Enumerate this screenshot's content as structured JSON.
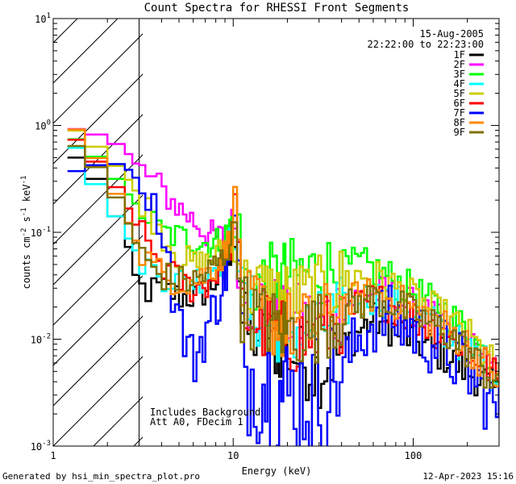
{
  "chart_data": {
    "type": "line",
    "title": "Count Spectra for RHESSI Front Segments",
    "xlabel": "Energy (keV)",
    "ylabel_parts": {
      "a": "counts cm",
      "b": "-2",
      "c": " s",
      "d": "-1",
      "e": " keV",
      "f": "-1"
    },
    "xscale": "log",
    "yscale": "log",
    "xlim": [
      1,
      300
    ],
    "ylim": [
      0.001,
      10
    ],
    "x_ticks": [
      {
        "value": 1,
        "label": "1"
      },
      {
        "value": 10,
        "label": "10"
      },
      {
        "value": 100,
        "label": "100"
      }
    ],
    "y_ticks": [
      {
        "value": 0.001,
        "base": "10",
        "exp": "-3"
      },
      {
        "value": 0.01,
        "base": "10",
        "exp": "-2"
      },
      {
        "value": 0.1,
        "base": "10",
        "exp": "-1"
      },
      {
        "value": 1,
        "base": "10",
        "exp": "0"
      },
      {
        "value": 10,
        "base": "10",
        "exp": "1"
      }
    ],
    "date": "15-Aug-2005",
    "time_range": "22:22:00 to 22:23:00",
    "annotation_lines": [
      "Includes Background",
      "Att A0, FDecim 1"
    ],
    "hatched_until": 3,
    "footer_left": "Generated by hsi_min_spectra_plot.pro",
    "footer_right": "12-Apr-2023 15:16",
    "anchor_x": [
      1.2,
      1.5,
      2,
      2.5,
      3,
      3.5,
      4,
      5,
      6,
      7,
      8,
      9,
      10,
      10.5,
      11,
      12,
      15,
      20,
      25,
      30,
      40,
      50,
      60,
      70,
      80,
      100,
      150,
      200,
      250,
      300
    ],
    "series": [
      {
        "name": "1F",
        "color": "#000000",
        "values": [
          0.5,
          0.5,
          0.2,
          0.1,
          0.03,
          0.028,
          0.03,
          0.025,
          0.025,
          0.028,
          0.035,
          0.04,
          0.08,
          0.12,
          0.015,
          0.012,
          0.01,
          0.008,
          0.006,
          0.005,
          0.008,
          0.012,
          0.015,
          0.014,
          0.012,
          0.01,
          0.007,
          0.005,
          0.004,
          0.003
        ]
      },
      {
        "name": "2F",
        "color": "#ff00ff",
        "values": [
          0.95,
          0.9,
          0.75,
          0.6,
          0.4,
          0.32,
          0.25,
          0.17,
          0.13,
          0.1,
          0.09,
          0.09,
          0.13,
          0.15,
          0.03,
          0.025,
          0.02,
          0.016,
          0.015,
          0.015,
          0.02,
          0.025,
          0.028,
          0.026,
          0.024,
          0.02,
          0.013,
          0.009,
          0.006,
          0.004
        ]
      },
      {
        "name": "3F",
        "color": "#00ff00",
        "values": [
          0.85,
          0.65,
          0.4,
          0.25,
          0.17,
          0.13,
          0.1,
          0.09,
          0.085,
          0.08,
          0.08,
          0.09,
          0.14,
          0.2,
          0.04,
          0.035,
          0.035,
          0.04,
          0.042,
          0.045,
          0.045,
          0.05,
          0.045,
          0.04,
          0.035,
          0.028,
          0.018,
          0.012,
          0.007,
          0.005
        ]
      },
      {
        "name": "4F",
        "color": "#00ffff",
        "values": [
          0.95,
          0.4,
          0.2,
          0.1,
          0.06,
          0.045,
          0.04,
          0.035,
          0.035,
          0.04,
          0.05,
          0.06,
          0.11,
          0.18,
          0.025,
          0.02,
          0.015,
          0.012,
          0.012,
          0.013,
          0.018,
          0.022,
          0.025,
          0.024,
          0.022,
          0.018,
          0.012,
          0.008,
          0.006,
          0.004
        ]
      },
      {
        "name": "5F",
        "color": "#cccc00",
        "values": [
          1.0,
          0.8,
          0.5,
          0.35,
          0.22,
          0.15,
          0.1,
          0.06,
          0.05,
          0.05,
          0.06,
          0.07,
          0.1,
          0.13,
          0.035,
          0.03,
          0.028,
          0.025,
          0.025,
          0.027,
          0.035,
          0.04,
          0.038,
          0.035,
          0.03,
          0.024,
          0.016,
          0.011,
          0.007,
          0.005
        ]
      },
      {
        "name": "6F",
        "color": "#ff0000",
        "values": [
          0.9,
          0.6,
          0.35,
          0.2,
          0.1,
          0.07,
          0.05,
          0.035,
          0.03,
          0.032,
          0.04,
          0.05,
          0.09,
          0.14,
          0.02,
          0.016,
          0.013,
          0.01,
          0.01,
          0.011,
          0.016,
          0.02,
          0.023,
          0.022,
          0.02,
          0.016,
          0.011,
          0.008,
          0.006,
          0.004
        ]
      },
      {
        "name": "7F",
        "color": "#0000ff",
        "values": [
          0.35,
          0.4,
          0.45,
          0.42,
          0.3,
          0.2,
          0.12,
          0.015,
          0.006,
          0.012,
          0.02,
          0.04,
          0.07,
          0.12,
          0.006,
          0.005,
          0.004,
          0.003,
          0.003,
          0.003,
          0.005,
          0.01,
          0.015,
          0.016,
          0.015,
          0.012,
          0.008,
          0.005,
          0.003,
          0.002
        ]
      },
      {
        "name": "8F",
        "color": "#ff8800",
        "values": [
          1.2,
          0.7,
          0.35,
          0.15,
          0.07,
          0.05,
          0.04,
          0.035,
          0.035,
          0.04,
          0.05,
          0.065,
          0.11,
          0.18,
          0.025,
          0.02,
          0.016,
          0.013,
          0.013,
          0.014,
          0.02,
          0.024,
          0.026,
          0.025,
          0.023,
          0.019,
          0.013,
          0.009,
          0.006,
          0.004
        ]
      },
      {
        "name": "9F",
        "color": "#807000",
        "values": [
          0.75,
          0.55,
          0.3,
          0.15,
          0.065,
          0.048,
          0.04,
          0.035,
          0.035,
          0.04,
          0.05,
          0.06,
          0.1,
          0.15,
          0.022,
          0.018,
          0.015,
          0.012,
          0.012,
          0.013,
          0.018,
          0.022,
          0.024,
          0.023,
          0.021,
          0.017,
          0.012,
          0.008,
          0.005,
          0.004
        ]
      }
    ]
  }
}
